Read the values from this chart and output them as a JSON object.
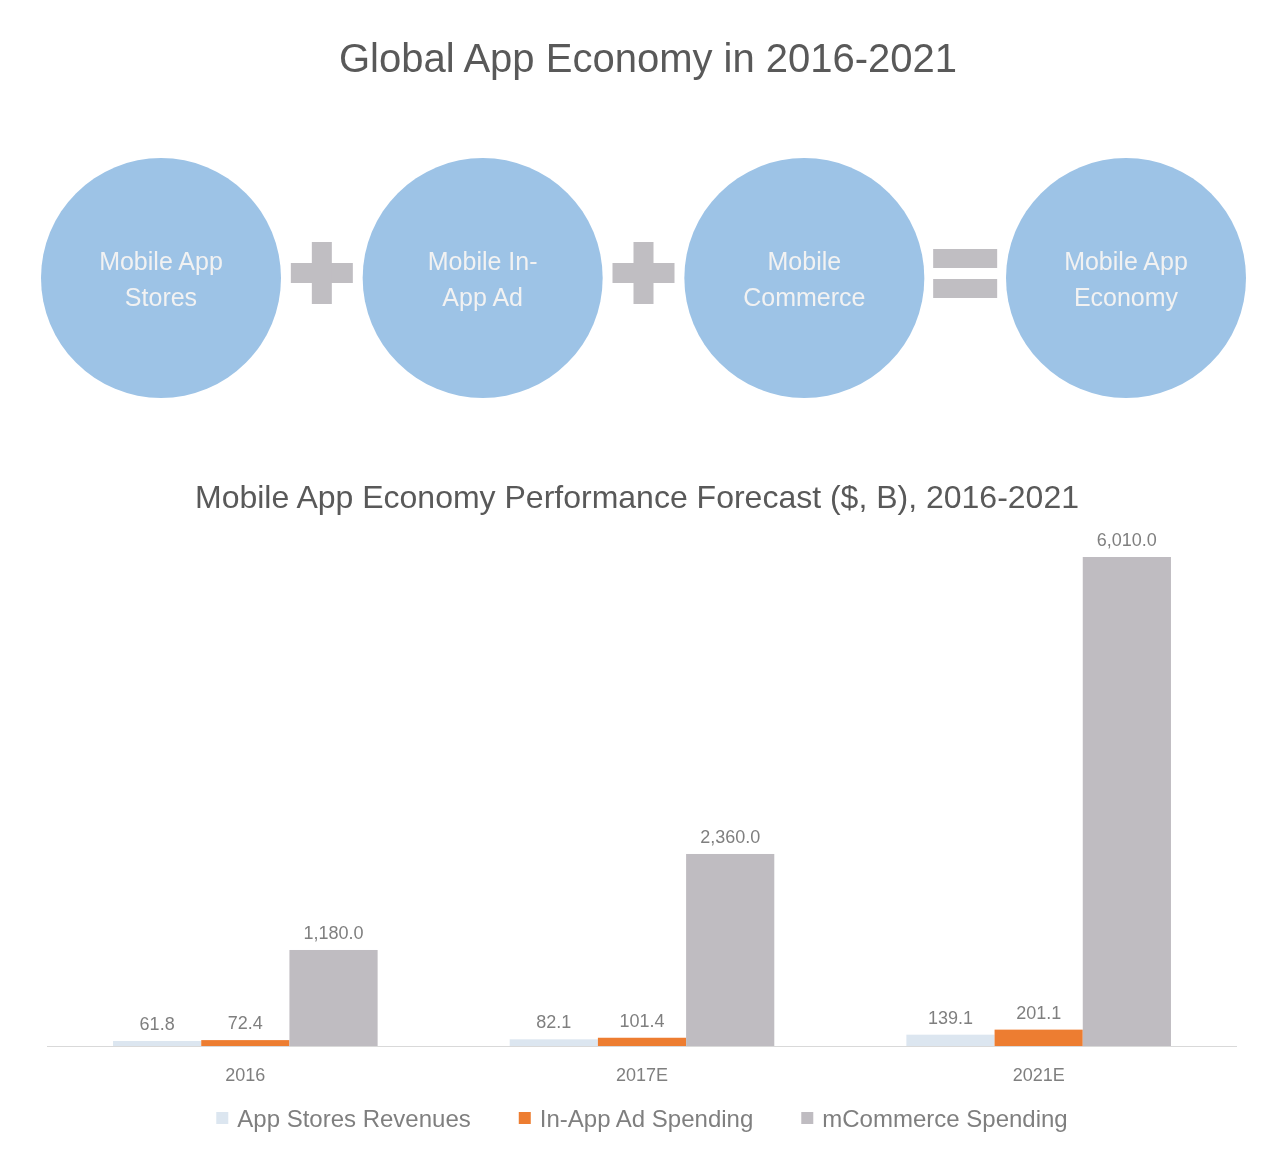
{
  "chart_data": [
    {
      "type": "other",
      "title": "Global App Economy in 2016-2021",
      "annotations": [
        "Mobile App Stores",
        "Mobile In-App Ad",
        "Mobile Commerce",
        "Mobile App Economy"
      ]
    },
    {
      "type": "bar",
      "title": "Mobile App Economy Performance Forecast ($, B), 2016-2021",
      "categories": [
        "2016",
        "2017E",
        "2021E"
      ],
      "series": [
        {
          "name": "App Stores Revenues",
          "color": "#dce6f0",
          "values": [
            61.8,
            82.1,
            139.1
          ],
          "value_labels": [
            "61.8",
            "82.1",
            "139.1"
          ]
        },
        {
          "name": "In-App Ad Spending",
          "color": "#ed7d31",
          "values": [
            72.4,
            101.4,
            201.1
          ],
          "value_labels": [
            "72.4",
            "101.4",
            "201.1"
          ]
        },
        {
          "name": "mCommerce Spending",
          "color": "#bfbcc1",
          "values": [
            1180.0,
            2360.0,
            6010.0
          ],
          "value_labels": [
            "1,180.0",
            "2,360.0",
            "6,010.0"
          ]
        }
      ],
      "legend": "bottom",
      "tick_labels": "x"
    }
  ]
}
